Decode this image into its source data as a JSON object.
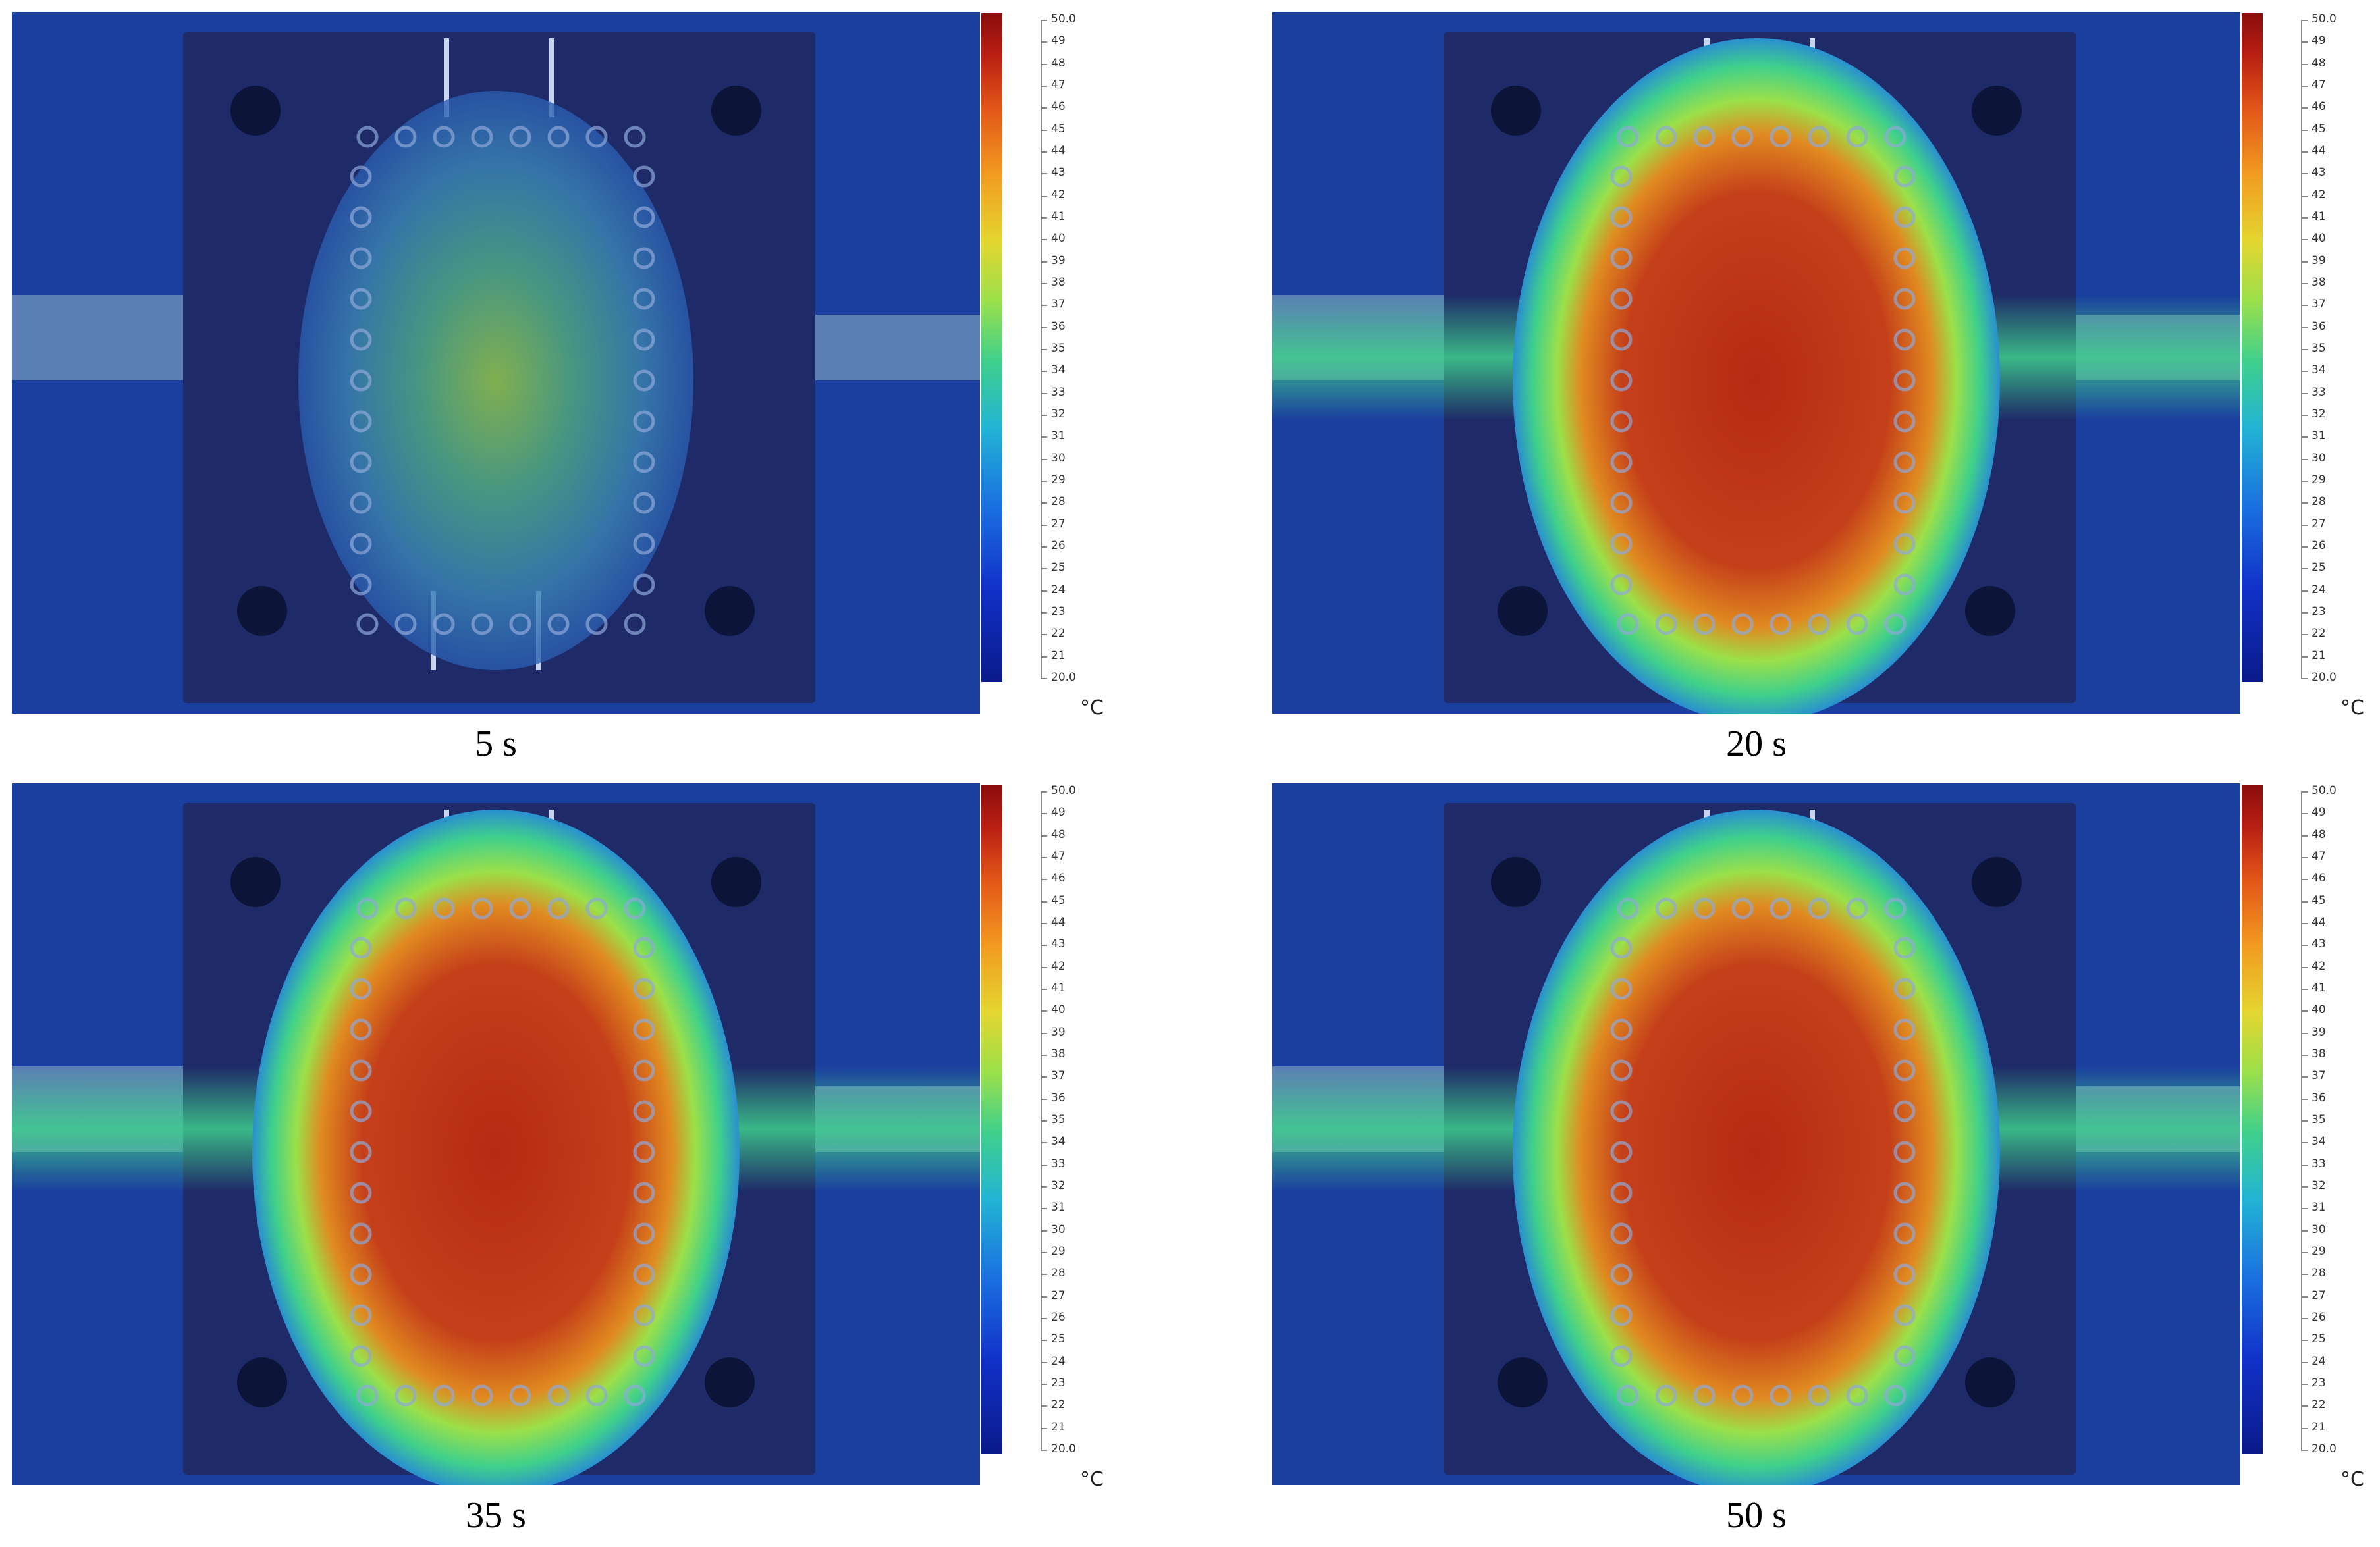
{
  "panels": [
    {
      "caption": "5 s",
      "heat": "low"
    },
    {
      "caption": "20 s",
      "heat": "high"
    },
    {
      "caption": "35 s",
      "heat": "high"
    },
    {
      "caption": "50 s",
      "heat": "high"
    }
  ],
  "colorbar": {
    "unit": "°C",
    "ticks": [
      "50.0",
      "49",
      "48",
      "47",
      "46",
      "45",
      "44",
      "43",
      "42",
      "41",
      "40",
      "39",
      "38",
      "37",
      "36",
      "35",
      "34",
      "33",
      "32",
      "31",
      "30",
      "29",
      "28",
      "27",
      "26",
      "25",
      "24",
      "23",
      "22",
      "21",
      "20.0"
    ]
  },
  "colors": {
    "background_blue": "#1b3f9e",
    "plate_dark": "#1e2b68",
    "hot_core": "#c0301a",
    "warm_ring": "#3fd08c"
  }
}
